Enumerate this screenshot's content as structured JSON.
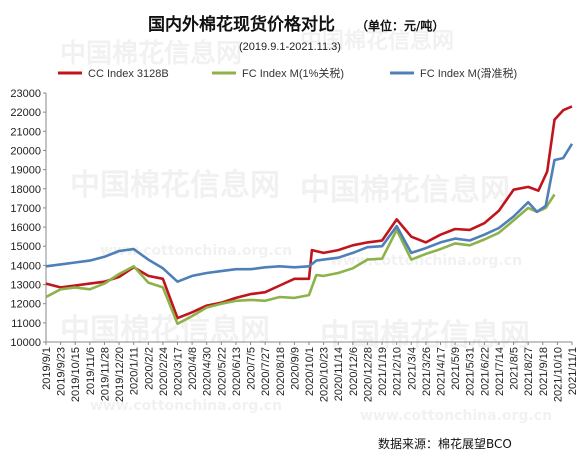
{
  "chart_data": {
    "type": "line",
    "title": "国内外棉花现货价格对比",
    "unit": "（单位：元/吨）",
    "subtitle": "(2019.9.1-2021.11.3)",
    "source": "数据来源：棉花展望BCO",
    "watermark": [
      "中国棉花信息网",
      "www.cottonchina.org.cn"
    ],
    "ylim": [
      10000,
      23000
    ],
    "yticks": [
      10000,
      11000,
      12000,
      13000,
      14000,
      15000,
      16000,
      17000,
      18000,
      19000,
      20000,
      21000,
      22000,
      23000
    ],
    "x_categories": [
      "2019/9/1",
      "2019/9/23",
      "2019/10/15",
      "2019/11/6",
      "2019/11/28",
      "2019/12/20",
      "2020/1/11",
      "2020/2/2",
      "2020/2/24",
      "2020/3/17",
      "2020/4/8",
      "2020/4/30",
      "2020/5/22",
      "2020/6/13",
      "2020/7/5",
      "2020/7/27",
      "2020/8/18",
      "2020/9/9",
      "2020/10/1",
      "2020/10/23",
      "2020/11/14",
      "2020/12/6",
      "2020/12/28",
      "2021/1/19",
      "2021/2/10",
      "2021/3/4",
      "2021/3/26",
      "2021/4/17",
      "2021/5/9",
      "2021/5/31",
      "2021/6/22",
      "2021/7/14",
      "2021/8/5",
      "2021/8/27",
      "2021/9/18",
      "2021/10/10",
      "2021/11/1"
    ],
    "legend": "top",
    "series": [
      {
        "name": "CC Index 3128B",
        "color": "#c0151c",
        "points": [
          [
            0,
            13050
          ],
          [
            1,
            12850
          ],
          [
            2,
            12950
          ],
          [
            3,
            13050
          ],
          [
            4,
            13150
          ],
          [
            5,
            13400
          ],
          [
            6,
            13900
          ],
          [
            7,
            13450
          ],
          [
            8,
            13300
          ],
          [
            9,
            11250
          ],
          [
            10,
            11550
          ],
          [
            11,
            11900
          ],
          [
            12,
            12050
          ],
          [
            13,
            12300
          ],
          [
            14,
            12500
          ],
          [
            15,
            12600
          ],
          [
            16,
            12950
          ],
          [
            17,
            13300
          ],
          [
            18,
            13300
          ],
          [
            18.2,
            14800
          ],
          [
            19,
            14650
          ],
          [
            20,
            14800
          ],
          [
            21,
            15050
          ],
          [
            22,
            15200
          ],
          [
            23,
            15300
          ],
          [
            24,
            16400
          ],
          [
            25,
            15500
          ],
          [
            26,
            15200
          ],
          [
            27,
            15600
          ],
          [
            28,
            15900
          ],
          [
            29,
            15850
          ],
          [
            30,
            16200
          ],
          [
            31,
            16850
          ],
          [
            32,
            17950
          ],
          [
            33,
            18100
          ],
          [
            33.7,
            17900
          ],
          [
            34.3,
            18900
          ],
          [
            34.8,
            21600
          ],
          [
            35.4,
            22100
          ],
          [
            36,
            22300
          ]
        ]
      },
      {
        "name": "FC Index M(1%关税)",
        "color": "#8db24a",
        "points": [
          [
            0,
            12350
          ],
          [
            1,
            12750
          ],
          [
            2,
            12850
          ],
          [
            3,
            12750
          ],
          [
            4,
            13050
          ],
          [
            5,
            13550
          ],
          [
            6,
            13950
          ],
          [
            7,
            13100
          ],
          [
            8,
            12850
          ],
          [
            9,
            10950
          ],
          [
            10,
            11350
          ],
          [
            11,
            11800
          ],
          [
            12,
            12000
          ],
          [
            13,
            12150
          ],
          [
            14,
            12200
          ],
          [
            15,
            12150
          ],
          [
            16,
            12350
          ],
          [
            17,
            12300
          ],
          [
            18,
            12450
          ],
          [
            18.5,
            13500
          ],
          [
            19,
            13450
          ],
          [
            20,
            13600
          ],
          [
            21,
            13850
          ],
          [
            22,
            14300
          ],
          [
            23,
            14350
          ],
          [
            24,
            15850
          ],
          [
            25,
            14300
          ],
          [
            26,
            14600
          ],
          [
            27,
            14850
          ],
          [
            28,
            15150
          ],
          [
            29,
            15050
          ],
          [
            30,
            15350
          ],
          [
            31,
            15700
          ],
          [
            32,
            16350
          ],
          [
            33,
            17000
          ],
          [
            33.6,
            16800
          ],
          [
            34.2,
            17000
          ],
          [
            34.8,
            17700
          ]
        ]
      },
      {
        "name": "FC Index M(滑准税)",
        "color": "#4f7fb8",
        "points": [
          [
            0,
            13950
          ],
          [
            1,
            14050
          ],
          [
            2,
            14150
          ],
          [
            3,
            14250
          ],
          [
            4,
            14450
          ],
          [
            5,
            14750
          ],
          [
            6,
            14850
          ],
          [
            7,
            14300
          ],
          [
            8,
            13850
          ],
          [
            9,
            13150
          ],
          [
            10,
            13450
          ],
          [
            11,
            13600
          ],
          [
            12,
            13700
          ],
          [
            13,
            13800
          ],
          [
            14,
            13800
          ],
          [
            15,
            13900
          ],
          [
            16,
            13950
          ],
          [
            17,
            13900
          ],
          [
            18,
            13950
          ],
          [
            18.5,
            14250
          ],
          [
            19,
            14300
          ],
          [
            20,
            14400
          ],
          [
            21,
            14650
          ],
          [
            22,
            14950
          ],
          [
            23,
            15000
          ],
          [
            24,
            16050
          ],
          [
            25,
            14650
          ],
          [
            26,
            14900
          ],
          [
            27,
            15200
          ],
          [
            28,
            15400
          ],
          [
            29,
            15300
          ],
          [
            30,
            15600
          ],
          [
            31,
            15950
          ],
          [
            32,
            16550
          ],
          [
            33,
            17300
          ],
          [
            33.6,
            16800
          ],
          [
            34.2,
            17100
          ],
          [
            34.8,
            19500
          ],
          [
            35.4,
            19600
          ],
          [
            36,
            20350
          ]
        ]
      }
    ]
  }
}
